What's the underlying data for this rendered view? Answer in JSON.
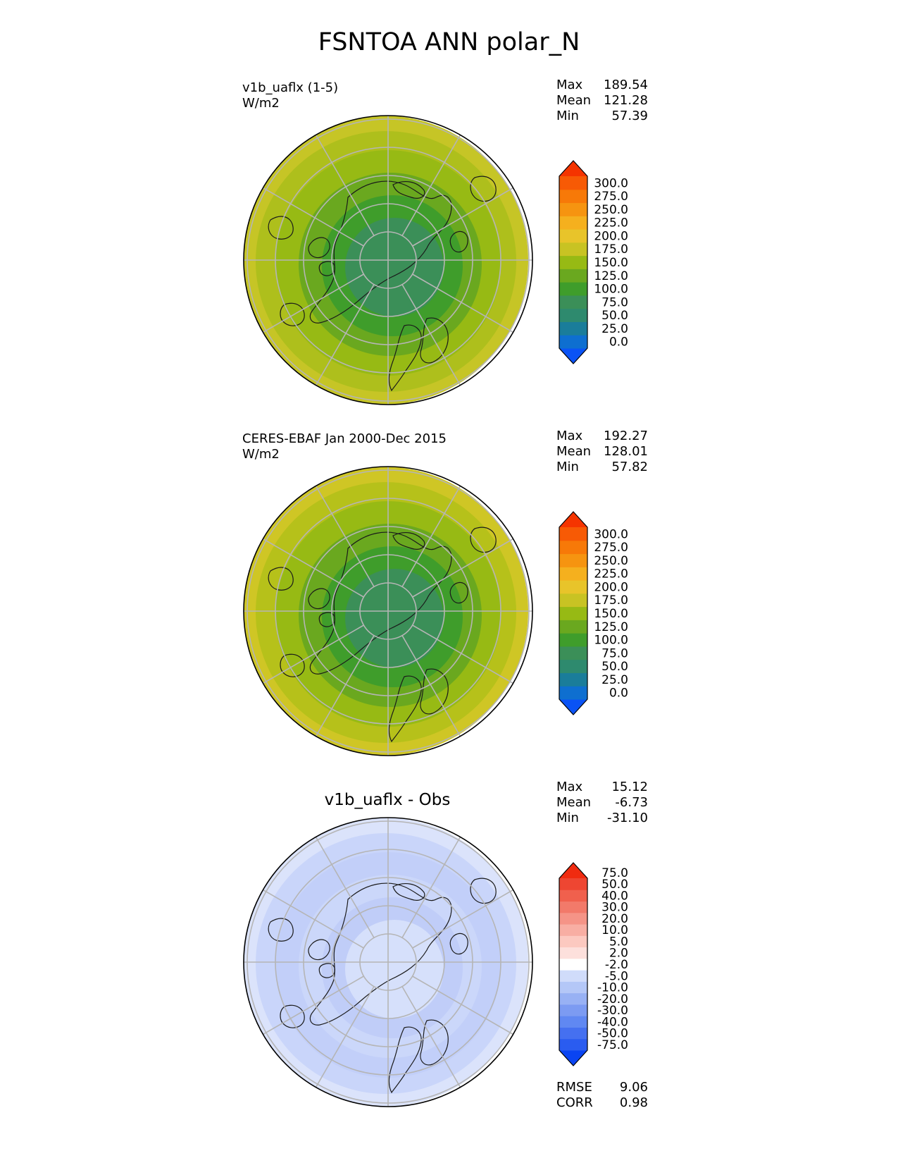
{
  "title": "FSNTOA ANN polar_N",
  "panels": [
    {
      "id": "test",
      "name_line": "v1b_uaflx (1-5)",
      "units_line": "W/m2",
      "plot_title": "",
      "stats": [
        {
          "label": "Max",
          "value": "189.54"
        },
        {
          "label": "Mean",
          "value": "121.28"
        },
        {
          "label": "Min",
          "value": "57.39"
        }
      ],
      "colorbar": {
        "levels": [
          "0.0",
          "25.0",
          "50.0",
          "75.0",
          "100.0",
          "125.0",
          "150.0",
          "175.0",
          "200.0",
          "225.0",
          "250.0",
          "275.0",
          "300.0"
        ],
        "colors": [
          "#0a53f5",
          "#0e6fd0",
          "#1a7d9a",
          "#2e8a6e",
          "#3b8f58",
          "#3f9d2b",
          "#6aa81f",
          "#97ba14",
          "#c8c323",
          "#e8c42a",
          "#f5b01e",
          "#f69410",
          "#f77908",
          "#f75a05",
          "#f53400"
        ]
      },
      "field_rings": [
        "#c6c526",
        "#aebf1c",
        "#97ba14",
        "#6aa81f",
        "#3f9d2b",
        "#3b8f58"
      ],
      "extra": []
    },
    {
      "id": "ref",
      "name_line": "CERES-EBAF Jan 2000-Dec 2015",
      "units_line": "W/m2",
      "plot_title": "",
      "stats": [
        {
          "label": "Max",
          "value": "192.27"
        },
        {
          "label": "Mean",
          "value": "128.01"
        },
        {
          "label": "Min",
          "value": "57.82"
        }
      ],
      "colorbar": {
        "levels": [
          "0.0",
          "25.0",
          "50.0",
          "75.0",
          "100.0",
          "125.0",
          "150.0",
          "175.0",
          "200.0",
          "225.0",
          "250.0",
          "275.0",
          "300.0"
        ],
        "colors": [
          "#0a53f5",
          "#0e6fd0",
          "#1a7d9a",
          "#2e8a6e",
          "#3b8f58",
          "#3f9d2b",
          "#6aa81f",
          "#97ba14",
          "#c8c323",
          "#e8c42a",
          "#f5b01e",
          "#f69410",
          "#f77908",
          "#f75a05",
          "#f53400"
        ]
      },
      "field_rings": [
        "#cfc625",
        "#b6c11a",
        "#97ba14",
        "#6aa81f",
        "#3f9d2b",
        "#3b8f58"
      ],
      "extra": []
    },
    {
      "id": "diff",
      "name_line": "",
      "units_line": "",
      "plot_title": "v1b_uaflx - Obs",
      "stats": [
        {
          "label": "Max",
          "value": "15.12"
        },
        {
          "label": "Mean",
          "value": "-6.73"
        },
        {
          "label": "Min",
          "value": "-31.10"
        }
      ],
      "colorbar": {
        "levels": [
          "-75.0",
          "-50.0",
          "-40.0",
          "-30.0",
          "-20.0",
          "-10.0",
          "-5.0",
          "-2.0",
          "2.0",
          "5.0",
          "10.0",
          "20.0",
          "30.0",
          "40.0",
          "50.0",
          "75.0"
        ],
        "colors": [
          "#0a44f2",
          "#2a5cf0",
          "#4570f0",
          "#6088f2",
          "#7c9bf2",
          "#98b1f4",
          "#b4c7f7",
          "#d0dcfa",
          "#ffffff",
          "#fde0dc",
          "#fcc9c0",
          "#f8aea3",
          "#f59487",
          "#f27a6a",
          "#f0604d",
          "#ee4632",
          "#f02b10"
        ]
      },
      "field_rings": [
        "#dbe3fb",
        "#c9d5fa",
        "#c2cff9",
        "#cbd7fa",
        "#c0cdf8",
        "#d6e0fb"
      ],
      "extra": [
        {
          "label": "RMSE",
          "value": "9.06"
        },
        {
          "label": "CORR",
          "value": "0.98"
        }
      ]
    }
  ]
}
